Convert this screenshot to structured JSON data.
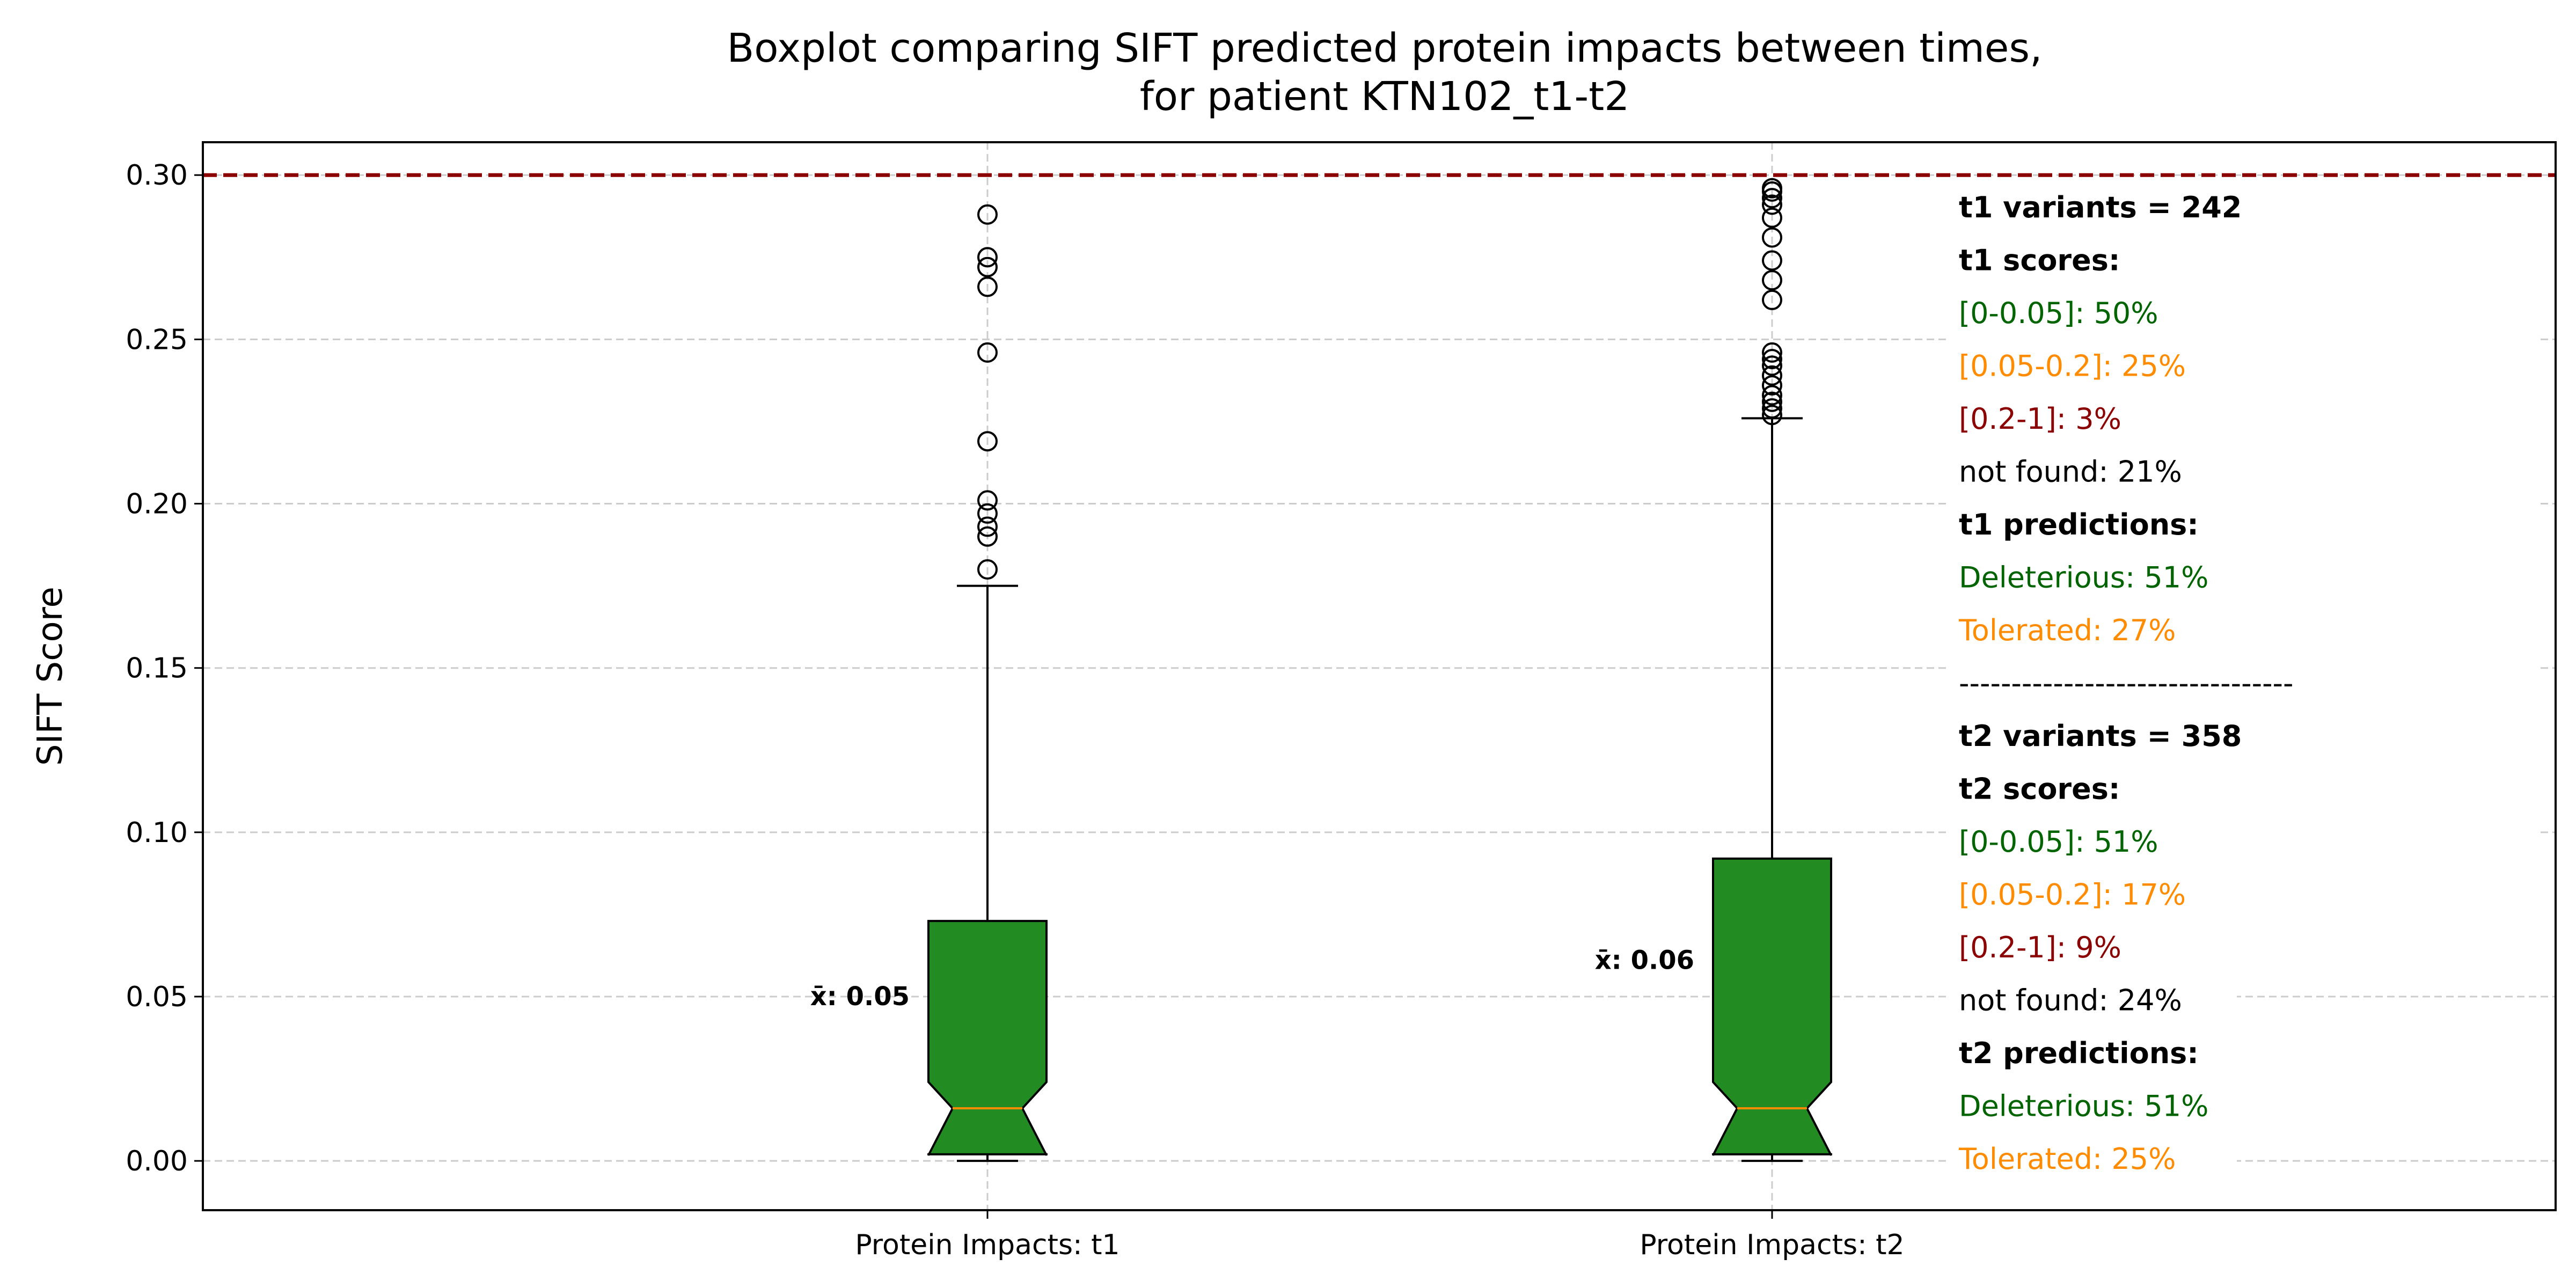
{
  "chart_data": {
    "type": "boxplot",
    "title_lines": [
      "Boxplot comparing SIFT predicted protein impacts between times,",
      "for patient KTN102_t1-t2"
    ],
    "xlabel": "",
    "ylabel": "SIFT Score",
    "ylim": [
      -0.015,
      0.31
    ],
    "yticks": [
      0.0,
      0.05,
      0.1,
      0.15,
      0.2,
      0.25,
      0.3
    ],
    "ytick_labels": [
      "0.00",
      "0.05",
      "0.10",
      "0.15",
      "0.20",
      "0.25",
      "0.30"
    ],
    "grid": true,
    "threshold_line": {
      "value": 0.3,
      "color": "#8b0000",
      "style": "dashed"
    },
    "box_color": "#228b22",
    "median_color": "#ff8c00",
    "notched": true,
    "categories": [
      "Protein Impacts: t1",
      "Protein Impacts: t2"
    ],
    "boxes": [
      {
        "category": "Protein Impacts: t1",
        "whisker_low": 0.0,
        "q1": 0.002,
        "notch_low": 0.024,
        "median": 0.016,
        "notch_high": 0.024,
        "q3": 0.073,
        "whisker_high": 0.175,
        "mean_label": "x̄: 0.05",
        "outliers": [
          0.18,
          0.19,
          0.193,
          0.197,
          0.201,
          0.219,
          0.246,
          0.266,
          0.272,
          0.275,
          0.288
        ]
      },
      {
        "category": "Protein Impacts: t2",
        "whisker_low": 0.0,
        "q1": 0.002,
        "notch_low": 0.024,
        "median": 0.016,
        "notch_high": 0.024,
        "q3": 0.092,
        "whisker_high": 0.226,
        "mean_label": "x̄: 0.06",
        "outliers": [
          0.227,
          0.229,
          0.231,
          0.233,
          0.236,
          0.239,
          0.242,
          0.244,
          0.246,
          0.262,
          0.268,
          0.274,
          0.281,
          0.287,
          0.291,
          0.293,
          0.295,
          0.296
        ]
      }
    ],
    "legend_placement": "right",
    "info_lines": [
      {
        "text": "t1 variants = 242",
        "color": "#000000",
        "bold": true
      },
      {
        "text": "t1 scores:",
        "color": "#000000",
        "bold": true
      },
      {
        "text": "[0-0.05]: 50%",
        "color": "#006400",
        "bold": false
      },
      {
        "text": "[0.05-0.2]: 25%",
        "color": "#ff8c00",
        "bold": false
      },
      {
        "text": "[0.2-1]: 3%",
        "color": "#8b0000",
        "bold": false
      },
      {
        "text": "not found: 21%",
        "color": "#000000",
        "bold": false
      },
      {
        "text": "t1 predictions:",
        "color": "#000000",
        "bold": true
      },
      {
        "text": "Deleterious: 51%",
        "color": "#006400",
        "bold": false
      },
      {
        "text": "Tolerated: 27%",
        "color": "#ff8c00",
        "bold": false
      },
      {
        "text": "--------------------------------",
        "color": "#000000",
        "bold": false
      },
      {
        "text": "t2 variants = 358",
        "color": "#000000",
        "bold": true
      },
      {
        "text": "t2 scores:",
        "color": "#000000",
        "bold": true
      },
      {
        "text": "[0-0.05]: 51%",
        "color": "#006400",
        "bold": false
      },
      {
        "text": "[0.05-0.2]: 17%",
        "color": "#ff8c00",
        "bold": false
      },
      {
        "text": "[0.2-1]: 9%",
        "color": "#8b0000",
        "bold": false
      },
      {
        "text": "not found: 24%",
        "color": "#000000",
        "bold": false
      },
      {
        "text": "t2 predictions:",
        "color": "#000000",
        "bold": true
      },
      {
        "text": "Deleterious: 51%",
        "color": "#006400",
        "bold": false
      },
      {
        "text": "Tolerated: 25%",
        "color": "#ff8c00",
        "bold": false
      }
    ]
  }
}
